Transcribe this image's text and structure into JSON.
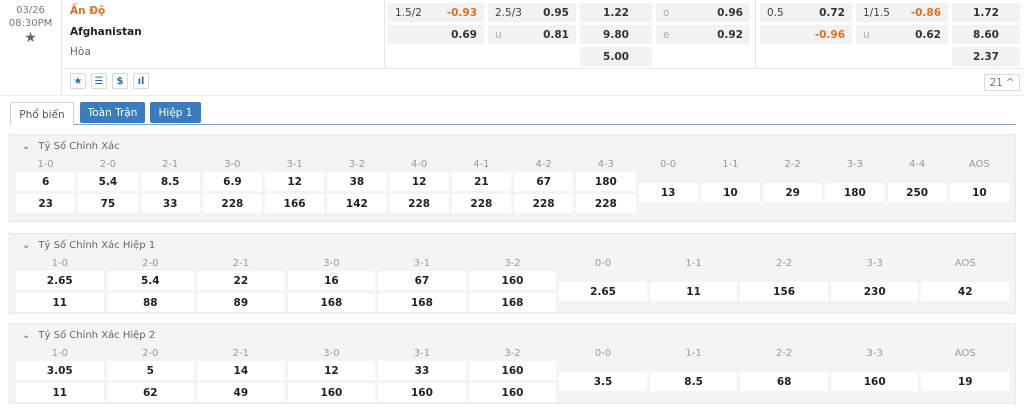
{
  "match": {
    "date": "03/26",
    "time": "08:30PM",
    "home": "Ấn Độ",
    "away": "Afghanistan",
    "draw": "Hòa"
  },
  "odds": {
    "hdp_ft": {
      "line": "1.5/2",
      "home": "-0.93",
      "away": "0.69"
    },
    "ou_ft": {
      "line": "2.5/3",
      "over": "0.95",
      "under_label": "u",
      "under": "0.81"
    },
    "x12_ft": [
      "1.22",
      "9.80",
      "5.00"
    ],
    "oe_ft": {
      "o_label": "o",
      "o": "0.96",
      "e_label": "e",
      "e": "0.92"
    },
    "hdp_ht": {
      "line": "0.5",
      "home": "0.72",
      "away": "-0.96"
    },
    "ou_ht": {
      "line": "1/1.5",
      "over": "-0.86",
      "under_label": "u",
      "under": "0.62"
    },
    "x12_ht": [
      "1.72",
      "8.60",
      "2.37"
    ]
  },
  "toolbar": {
    "icons": [
      "star-icon",
      "list-icon",
      "dollar-icon",
      "chart-icon"
    ],
    "more_count": "21"
  },
  "tabs": [
    {
      "label": "Phổ biến",
      "active": true
    },
    {
      "label": "Toàn Trận"
    },
    {
      "label": "Hiệp 1"
    }
  ],
  "sections": [
    {
      "title": "Tỷ Số Chính Xác",
      "pairs": [
        [
          "1-0",
          "6",
          "23"
        ],
        [
          "2-0",
          "5.4",
          "75"
        ],
        [
          "2-1",
          "8.5",
          "33"
        ],
        [
          "3-0",
          "6.9",
          "228"
        ],
        [
          "3-1",
          "12",
          "166"
        ],
        [
          "3-2",
          "38",
          "142"
        ],
        [
          "4-0",
          "12",
          "228"
        ],
        [
          "4-1",
          "21",
          "228"
        ],
        [
          "4-2",
          "67",
          "228"
        ],
        [
          "4-3",
          "180",
          "228"
        ]
      ],
      "singles": [
        [
          "0-0",
          "13"
        ],
        [
          "1-1",
          "10"
        ],
        [
          "2-2",
          "29"
        ],
        [
          "3-3",
          "180"
        ],
        [
          "4-4",
          "250"
        ],
        [
          "AOS",
          "10"
        ]
      ]
    },
    {
      "title": "Tỷ Số Chính Xác Hiệp 1",
      "pairs": [
        [
          "1-0",
          "2.65",
          "11"
        ],
        [
          "2-0",
          "5.4",
          "88"
        ],
        [
          "2-1",
          "22",
          "89"
        ],
        [
          "3-0",
          "16",
          "168"
        ],
        [
          "3-1",
          "67",
          "168"
        ],
        [
          "3-2",
          "160",
          "168"
        ]
      ],
      "singles": [
        [
          "0-0",
          "2.65"
        ],
        [
          "1-1",
          "11"
        ],
        [
          "2-2",
          "156"
        ],
        [
          "3-3",
          "230"
        ],
        [
          "AOS",
          "42"
        ]
      ]
    },
    {
      "title": "Tỷ Số Chính Xác Hiệp 2",
      "pairs": [
        [
          "1-0",
          "3.05",
          "11"
        ],
        [
          "2-0",
          "5",
          "62"
        ],
        [
          "2-1",
          "14",
          "49"
        ],
        [
          "3-0",
          "12",
          "160"
        ],
        [
          "3-1",
          "33",
          "160"
        ],
        [
          "3-2",
          "160",
          "160"
        ]
      ],
      "singles": [
        [
          "0-0",
          "3.5"
        ],
        [
          "1-1",
          "8.5"
        ],
        [
          "2-2",
          "68"
        ],
        [
          "3-3",
          "160"
        ],
        [
          "AOS",
          "19"
        ]
      ]
    }
  ]
}
